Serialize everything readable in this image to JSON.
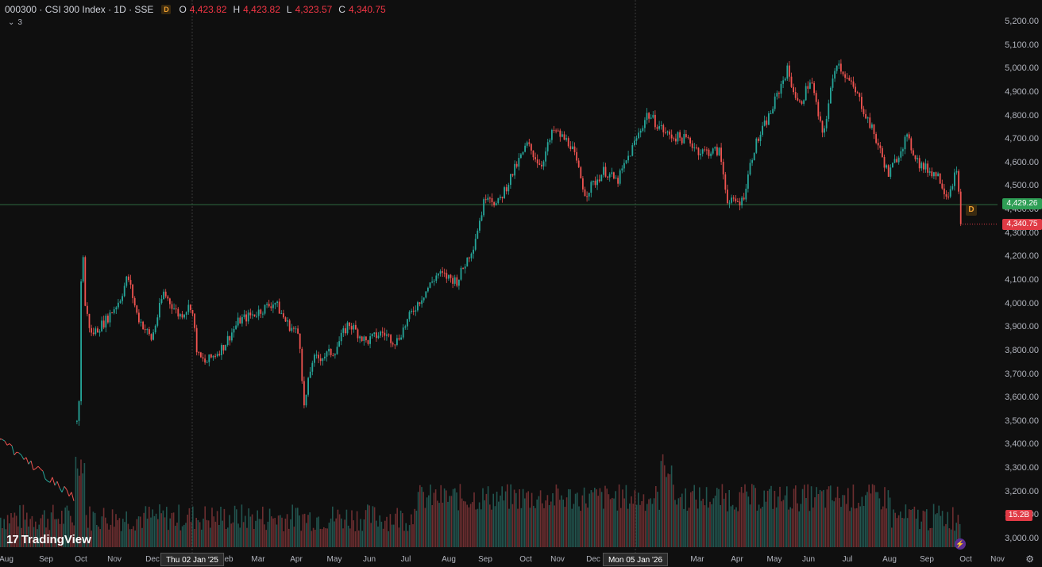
{
  "header": {
    "symbol": "000300 · CSI 300 Index · 1D · SSE",
    "badge": "D",
    "ohlc": [
      {
        "k": "O",
        "v": "4,423.82"
      },
      {
        "k": "H",
        "v": "4,423.82"
      },
      {
        "k": "L",
        "v": "4,323.57"
      },
      {
        "k": "C",
        "v": "4,340.75"
      }
    ],
    "collapse_count": "3"
  },
  "price_axis": {
    "labels": [
      "5,200.00",
      "5,100.00",
      "5,000.00",
      "4,900.00",
      "4,800.00",
      "4,700.00",
      "4,600.00",
      "4,500.00",
      "4,400.00",
      "4,300.00",
      "4,200.00",
      "4,100.00",
      "4,000.00",
      "3,900.00",
      "3,800.00",
      "3,700.00",
      "3,600.00",
      "3,500.00",
      "3,400.00",
      "3,300.00",
      "3,200.00",
      "3,100.00",
      "3,000.00"
    ],
    "values": [
      5200,
      5100,
      5000,
      4900,
      4800,
      4700,
      4600,
      4500,
      4400,
      4300,
      4200,
      4100,
      4000,
      3900,
      3800,
      3700,
      3600,
      3500,
      3400,
      3300,
      3200,
      3100,
      3000
    ],
    "crosshair_tag": "4,429.26",
    "last_tag": "4,340.75",
    "volume_tag": "15.2B"
  },
  "time_axis": {
    "labels": [
      "Aug",
      "Sep",
      "Oct",
      "Nov",
      "Dec",
      "Feb",
      "Mar",
      "Apr",
      "May",
      "Jun",
      "Jul",
      "Aug",
      "Sep",
      "Oct",
      "Nov",
      "Dec",
      "Mar",
      "Apr",
      "May",
      "Jun",
      "Jul",
      "Aug",
      "Sep",
      "Oct",
      "Nov"
    ],
    "crosshair_dates": [
      "Thu 02 Jan '25",
      "Mon 05 Jan '26"
    ]
  },
  "logo": {
    "text": "TradingView",
    "mark": "17"
  },
  "colors": {
    "up": "#26a69a",
    "down": "#ef5350",
    "background": "#0f0f0f",
    "crosshair_price": "#2e9e55",
    "last_price": "#e03a45"
  },
  "chart_data": {
    "type": "candlestick",
    "title": "000300 · CSI 300 Index · 1D · SSE",
    "xlabel": "",
    "ylabel": "",
    "ylim": [
      3000,
      5200
    ],
    "x_range": [
      "Aug",
      "Nov"
    ],
    "grid": false,
    "series": [
      {
        "name": "close",
        "anchors": [
          {
            "t": 96,
            "v": 3500
          },
          {
            "t": 100,
            "v": 3650
          },
          {
            "t": 102,
            "v": 4380
          },
          {
            "t": 106,
            "v": 4000
          },
          {
            "t": 114,
            "v": 3870
          },
          {
            "t": 132,
            "v": 3930
          },
          {
            "t": 150,
            "v": 4020
          },
          {
            "t": 160,
            "v": 4120
          },
          {
            "t": 172,
            "v": 3950
          },
          {
            "t": 190,
            "v": 3850
          },
          {
            "t": 205,
            "v": 4050
          },
          {
            "t": 225,
            "v": 3950
          },
          {
            "t": 240,
            "v": 4000
          },
          {
            "t": 248,
            "v": 3780
          },
          {
            "t": 258,
            "v": 3750
          },
          {
            "t": 280,
            "v": 3820
          },
          {
            "t": 300,
            "v": 3930
          },
          {
            "t": 320,
            "v": 3960
          },
          {
            "t": 345,
            "v": 4010
          },
          {
            "t": 360,
            "v": 3920
          },
          {
            "t": 376,
            "v": 3870
          },
          {
            "t": 382,
            "v": 3560
          },
          {
            "t": 392,
            "v": 3760
          },
          {
            "t": 420,
            "v": 3800
          },
          {
            "t": 438,
            "v": 3920
          },
          {
            "t": 460,
            "v": 3840
          },
          {
            "t": 480,
            "v": 3880
          },
          {
            "t": 498,
            "v": 3840
          },
          {
            "t": 520,
            "v": 3980
          },
          {
            "t": 550,
            "v": 4130
          },
          {
            "t": 575,
            "v": 4100
          },
          {
            "t": 595,
            "v": 4250
          },
          {
            "t": 612,
            "v": 4480
          },
          {
            "t": 625,
            "v": 4420
          },
          {
            "t": 645,
            "v": 4560
          },
          {
            "t": 663,
            "v": 4680
          },
          {
            "t": 680,
            "v": 4590
          },
          {
            "t": 696,
            "v": 4740
          },
          {
            "t": 718,
            "v": 4680
          },
          {
            "t": 736,
            "v": 4470
          },
          {
            "t": 760,
            "v": 4570
          },
          {
            "t": 776,
            "v": 4520
          },
          {
            "t": 800,
            "v": 4700
          },
          {
            "t": 814,
            "v": 4810
          },
          {
            "t": 840,
            "v": 4720
          },
          {
            "t": 865,
            "v": 4700
          },
          {
            "t": 880,
            "v": 4650
          },
          {
            "t": 905,
            "v": 4650
          },
          {
            "t": 916,
            "v": 4430
          },
          {
            "t": 934,
            "v": 4440
          },
          {
            "t": 948,
            "v": 4660
          },
          {
            "t": 970,
            "v": 4820
          },
          {
            "t": 990,
            "v": 5000
          },
          {
            "t": 1005,
            "v": 4840
          },
          {
            "t": 1020,
            "v": 4960
          },
          {
            "t": 1035,
            "v": 4710
          },
          {
            "t": 1052,
            "v": 5040
          },
          {
            "t": 1066,
            "v": 4960
          },
          {
            "t": 1080,
            "v": 4880
          },
          {
            "t": 1100,
            "v": 4720
          },
          {
            "t": 1118,
            "v": 4550
          },
          {
            "t": 1140,
            "v": 4710
          },
          {
            "t": 1158,
            "v": 4590
          },
          {
            "t": 1180,
            "v": 4550
          },
          {
            "t": 1192,
            "v": 4460
          },
          {
            "t": 1203,
            "v": 4570
          },
          {
            "t": 1210,
            "v": 4340.75
          }
        ]
      },
      {
        "name": "volume",
        "unit": "B",
        "last": 15.2
      }
    ]
  }
}
